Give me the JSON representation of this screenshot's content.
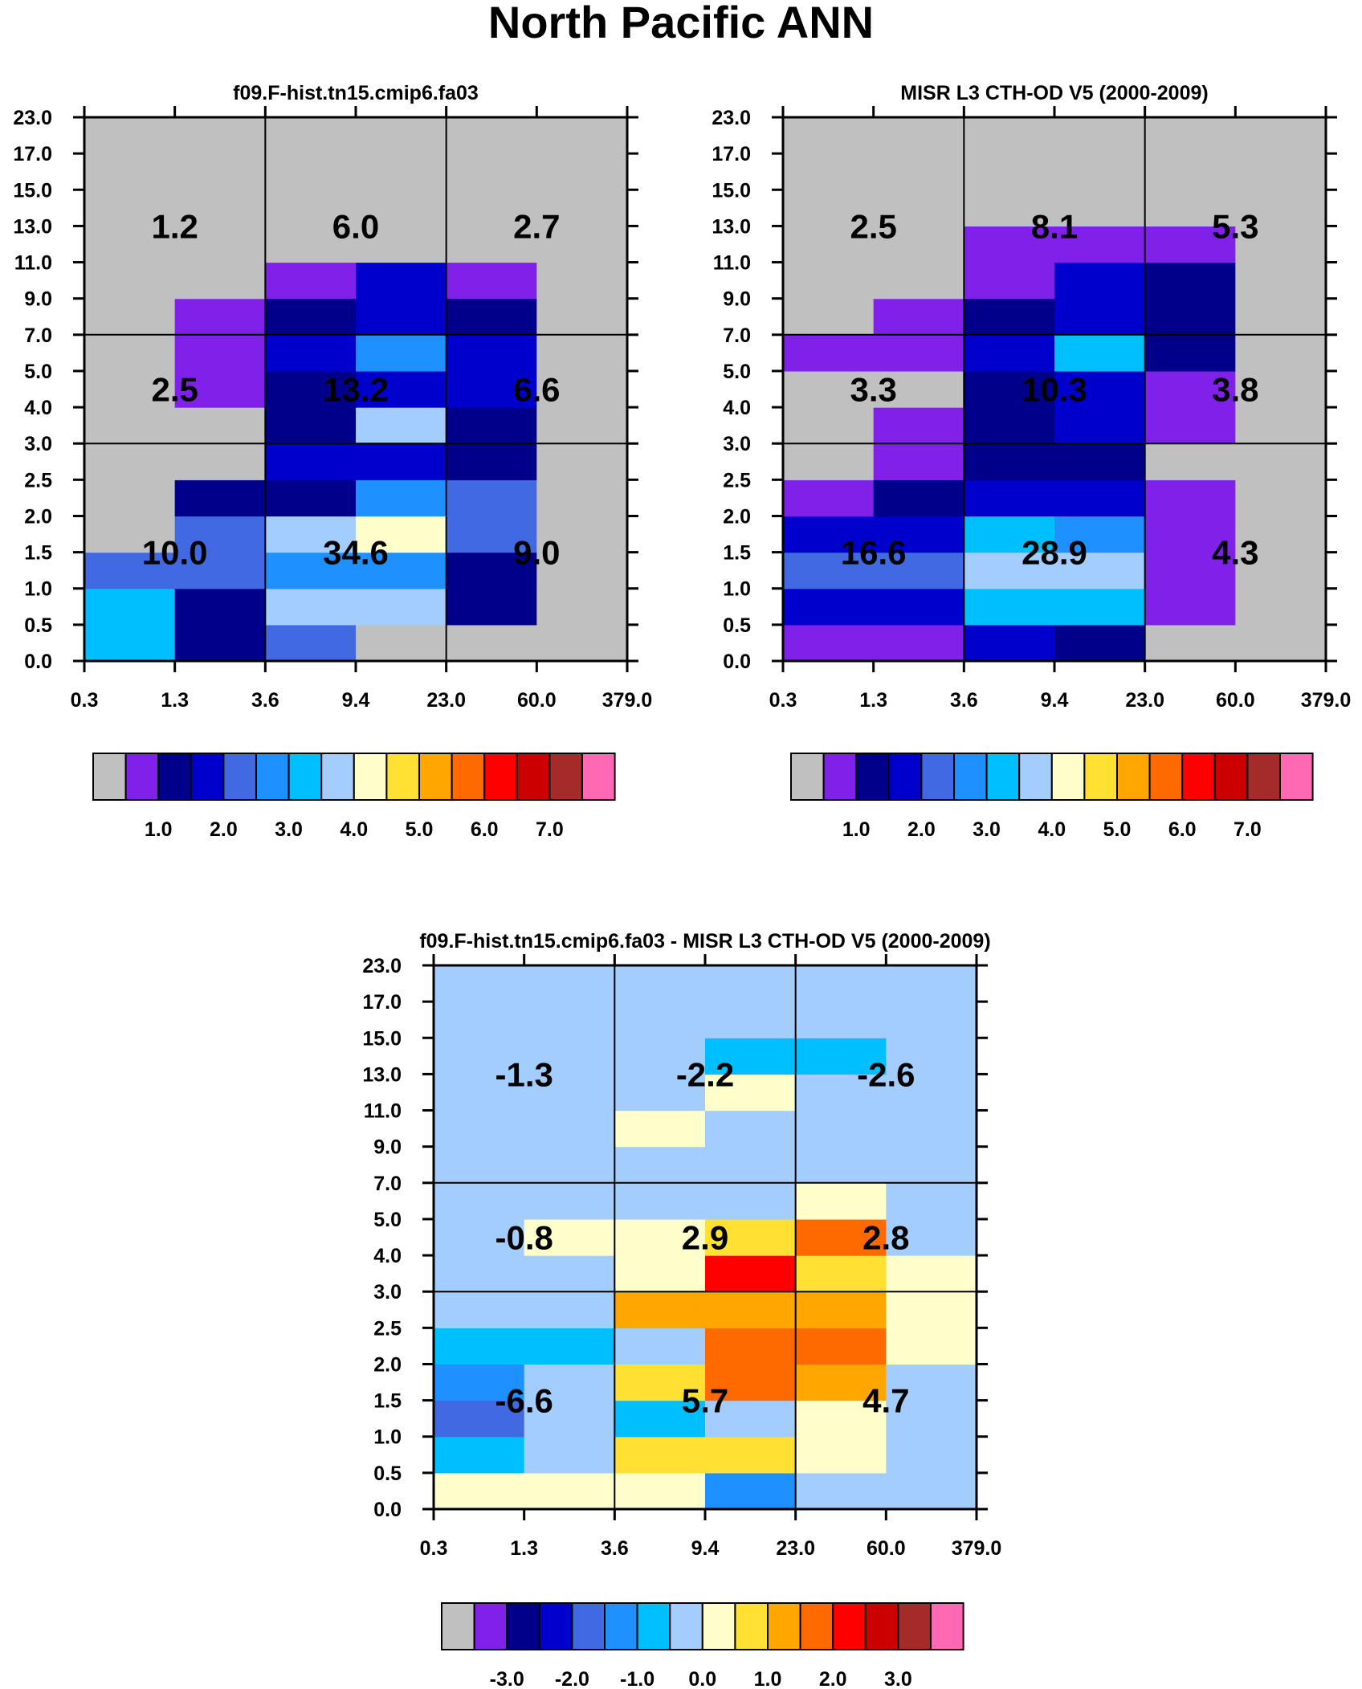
{
  "title": "North Pacific ANN",
  "colors": {
    "gray": "#c0c0c0",
    "purple": "#8021ea",
    "navy": "#00008b",
    "blue": "#0000cd",
    "royal": "#4169e1",
    "dodger": "#1e90ff",
    "sky": "#00bfff",
    "light": "#a2cdfc",
    "cream": "#ffffcc",
    "gold": "#ffe033",
    "orange": "#ffa600",
    "darkorange": "#ff6a00",
    "red": "#ff0000",
    "crimson": "#cd0000",
    "brown": "#a52a2a",
    "pink": "#ff69b4"
  },
  "chart_data": [
    {
      "type": "heatmap",
      "id": "model",
      "title": "f09.F-hist.tn15.cmip6.fa03",
      "x_ticks": [
        "0.3",
        "1.3",
        "3.6",
        "9.4",
        "23.0",
        "60.0",
        "379.0"
      ],
      "y_ticks": [
        "0.0",
        "0.5",
        "1.0",
        "1.5",
        "2.0",
        "2.5",
        "3.0",
        "4.0",
        "5.0",
        "7.0",
        "9.0",
        "11.0",
        "13.0",
        "15.0",
        "17.0",
        "23.0"
      ],
      "x_label_meaning": "cloud optical depth bin edges",
      "y_label_meaning": "cloud top height (km) bin edges",
      "grid_note": "rows listed bottom (0.0-0.5) to top (17.0-23.0); columns 0.3-1.3 ... 60.0-379.0; values are color class indices 0-15",
      "cells": [
        [
          6,
          2,
          4,
          0,
          0,
          0
        ],
        [
          6,
          2,
          7,
          7,
          2,
          0
        ],
        [
          4,
          4,
          5,
          5,
          2,
          0
        ],
        [
          0,
          4,
          7,
          8,
          4,
          0
        ],
        [
          0,
          2,
          2,
          5,
          4,
          0
        ],
        [
          0,
          0,
          3,
          3,
          2,
          0
        ],
        [
          0,
          0,
          2,
          7,
          2,
          0
        ],
        [
          0,
          1,
          2,
          3,
          3,
          0
        ],
        [
          0,
          1,
          3,
          5,
          3,
          0
        ],
        [
          0,
          1,
          2,
          3,
          2,
          0
        ],
        [
          0,
          0,
          1,
          3,
          1,
          0
        ],
        [
          0,
          0,
          0,
          0,
          0,
          0
        ],
        [
          0,
          0,
          0,
          0,
          0,
          0
        ],
        [
          0,
          0,
          0,
          0,
          0,
          0
        ],
        [
          0,
          0,
          0,
          0,
          0,
          0
        ]
      ],
      "cell_colors_by_index": [
        "gray",
        "purple",
        "navy",
        "blue",
        "royal",
        "dodger",
        "sky",
        "light",
        "cream",
        "gold",
        "orange",
        "darkorange",
        "red",
        "crimson",
        "brown",
        "pink"
      ],
      "region_sums": [
        {
          "label": "1.2",
          "x_center": 1.3,
          "y_band": "high"
        },
        {
          "label": "6.0",
          "x_center": 9.4,
          "y_band": "high"
        },
        {
          "label": "2.7",
          "x_center": 60.0,
          "y_band": "high"
        },
        {
          "label": "2.5",
          "x_center": 1.3,
          "y_band": "middle"
        },
        {
          "label": "13.2",
          "x_center": 9.4,
          "y_band": "middle"
        },
        {
          "label": "6.6",
          "x_center": 60.0,
          "y_band": "middle"
        },
        {
          "label": "10.0",
          "x_center": 1.3,
          "y_band": "low"
        },
        {
          "label": "34.6",
          "x_center": 9.4,
          "y_band": "low"
        },
        {
          "label": "9.0",
          "x_center": 60.0,
          "y_band": "low"
        }
      ],
      "colorbar": {
        "colors": [
          "gray",
          "purple",
          "navy",
          "blue",
          "royal",
          "dodger",
          "sky",
          "light",
          "cream",
          "gold",
          "orange",
          "darkorange",
          "red",
          "crimson",
          "brown",
          "pink"
        ],
        "labels": [
          "1.0",
          "2.0",
          "3.0",
          "4.0",
          "5.0",
          "6.0",
          "7.0"
        ],
        "label_after_box": [
          2,
          4,
          6,
          8,
          10,
          12,
          14
        ]
      }
    },
    {
      "type": "heatmap",
      "id": "obs",
      "title": "MISR L3 CTH-OD V5 (2000-2009)",
      "x_ticks": [
        "0.3",
        "1.3",
        "3.6",
        "9.4",
        "23.0",
        "60.0",
        "379.0"
      ],
      "y_ticks": [
        "0.0",
        "0.5",
        "1.0",
        "1.5",
        "2.0",
        "2.5",
        "3.0",
        "4.0",
        "5.0",
        "7.0",
        "9.0",
        "11.0",
        "13.0",
        "15.0",
        "17.0",
        "23.0"
      ],
      "cells": [
        [
          1,
          1,
          3,
          2,
          0,
          0
        ],
        [
          3,
          3,
          6,
          6,
          1,
          0
        ],
        [
          4,
          4,
          7,
          7,
          1,
          0
        ],
        [
          3,
          3,
          6,
          5,
          1,
          0
        ],
        [
          1,
          2,
          3,
          3,
          1,
          0
        ],
        [
          0,
          1,
          2,
          2,
          0,
          0
        ],
        [
          0,
          1,
          2,
          3,
          1,
          0
        ],
        [
          0,
          0,
          2,
          3,
          1,
          0
        ],
        [
          1,
          1,
          3,
          6,
          2,
          0
        ],
        [
          0,
          1,
          2,
          3,
          2,
          0
        ],
        [
          0,
          0,
          1,
          3,
          2,
          0
        ],
        [
          0,
          0,
          1,
          1,
          1,
          0
        ],
        [
          0,
          0,
          0,
          0,
          0,
          0
        ],
        [
          0,
          0,
          0,
          0,
          0,
          0
        ],
        [
          0,
          0,
          0,
          0,
          0,
          0
        ]
      ],
      "cell_colors_by_index": [
        "gray",
        "purple",
        "navy",
        "blue",
        "royal",
        "dodger",
        "sky",
        "light",
        "cream",
        "gold",
        "orange",
        "darkorange",
        "red",
        "crimson",
        "brown",
        "pink"
      ],
      "region_sums": [
        {
          "label": "2.5",
          "x_center": 1.3,
          "y_band": "high"
        },
        {
          "label": "8.1",
          "x_center": 9.4,
          "y_band": "high"
        },
        {
          "label": "5.3",
          "x_center": 60.0,
          "y_band": "high"
        },
        {
          "label": "3.3",
          "x_center": 1.3,
          "y_band": "middle"
        },
        {
          "label": "10.3",
          "x_center": 9.4,
          "y_band": "middle"
        },
        {
          "label": "3.8",
          "x_center": 60.0,
          "y_band": "middle"
        },
        {
          "label": "16.6",
          "x_center": 1.3,
          "y_band": "low"
        },
        {
          "label": "28.9",
          "x_center": 9.4,
          "y_band": "low"
        },
        {
          "label": "4.3",
          "x_center": 60.0,
          "y_band": "low"
        }
      ],
      "colorbar": {
        "colors": [
          "gray",
          "purple",
          "navy",
          "blue",
          "royal",
          "dodger",
          "sky",
          "light",
          "cream",
          "gold",
          "orange",
          "darkorange",
          "red",
          "crimson",
          "brown",
          "pink"
        ],
        "labels": [
          "1.0",
          "2.0",
          "3.0",
          "4.0",
          "5.0",
          "6.0",
          "7.0"
        ],
        "label_after_box": [
          2,
          4,
          6,
          8,
          10,
          12,
          14
        ]
      }
    },
    {
      "type": "heatmap",
      "id": "diff",
      "title": "f09.F-hist.tn15.cmip6.fa03 - MISR L3 CTH-OD V5 (2000-2009)",
      "x_ticks": [
        "0.3",
        "1.3",
        "3.6",
        "9.4",
        "23.0",
        "60.0",
        "379.0"
      ],
      "y_ticks": [
        "0.0",
        "0.5",
        "1.0",
        "1.5",
        "2.0",
        "2.5",
        "3.0",
        "4.0",
        "5.0",
        "7.0",
        "9.0",
        "11.0",
        "13.0",
        "15.0",
        "17.0",
        "23.0"
      ],
      "cells": [
        [
          8,
          8,
          8,
          5,
          7,
          7
        ],
        [
          6,
          7,
          9,
          9,
          8,
          7
        ],
        [
          4,
          7,
          6,
          7,
          8,
          7
        ],
        [
          5,
          7,
          9,
          11,
          10,
          7
        ],
        [
          6,
          6,
          7,
          11,
          11,
          8
        ],
        [
          7,
          7,
          10,
          10,
          10,
          8
        ],
        [
          7,
          7,
          8,
          12,
          9,
          8
        ],
        [
          7,
          8,
          8,
          9,
          11,
          7
        ],
        [
          7,
          7,
          7,
          7,
          8,
          7
        ],
        [
          7,
          7,
          7,
          7,
          7,
          7
        ],
        [
          7,
          7,
          8,
          7,
          7,
          7
        ],
        [
          7,
          7,
          7,
          8,
          7,
          7
        ],
        [
          7,
          7,
          7,
          6,
          6,
          7
        ],
        [
          7,
          7,
          7,
          7,
          7,
          7
        ],
        [
          7,
          7,
          7,
          7,
          7,
          7
        ]
      ],
      "cell_colors_by_index": [
        "gray",
        "purple",
        "navy",
        "blue",
        "royal",
        "dodger",
        "sky",
        "light",
        "cream",
        "gold",
        "orange",
        "darkorange",
        "red",
        "crimson",
        "brown",
        "pink"
      ],
      "region_sums": [
        {
          "label": "-1.3",
          "x_center": 1.3,
          "y_band": "high"
        },
        {
          "label": "-2.2",
          "x_center": 9.4,
          "y_band": "high"
        },
        {
          "label": "-2.6",
          "x_center": 60.0,
          "y_band": "high"
        },
        {
          "label": "-0.8",
          "x_center": 1.3,
          "y_band": "middle"
        },
        {
          "label": "2.9",
          "x_center": 9.4,
          "y_band": "middle"
        },
        {
          "label": "2.8",
          "x_center": 60.0,
          "y_band": "middle"
        },
        {
          "label": "-6.6",
          "x_center": 1.3,
          "y_band": "low"
        },
        {
          "label": "5.7",
          "x_center": 9.4,
          "y_band": "low"
        },
        {
          "label": "4.7",
          "x_center": 60.0,
          "y_band": "low"
        }
      ],
      "colorbar": {
        "colors": [
          "gray",
          "purple",
          "navy",
          "blue",
          "royal",
          "dodger",
          "sky",
          "light",
          "cream",
          "gold",
          "orange",
          "darkorange",
          "red",
          "crimson",
          "brown",
          "pink"
        ],
        "labels": [
          "-3.0",
          "-2.0",
          "-1.0",
          "0.0",
          "1.0",
          "2.0",
          "3.0"
        ],
        "label_after_box": [
          2,
          4,
          6,
          8,
          10,
          12,
          14
        ]
      }
    }
  ]
}
